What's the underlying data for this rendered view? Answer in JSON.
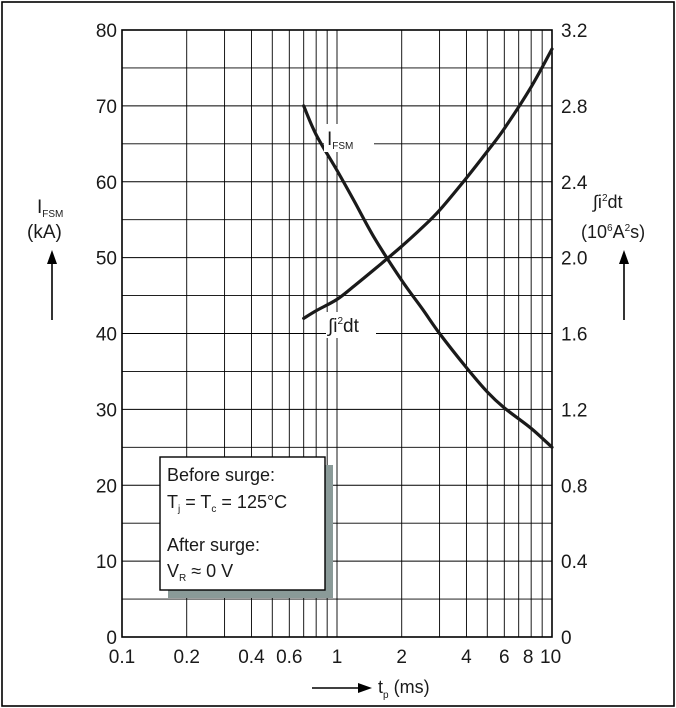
{
  "chart_data": {
    "type": "line",
    "x_scale": "log",
    "xlim": [
      0.1,
      10
    ],
    "ylim_left": [
      0,
      80
    ],
    "ylim_right": [
      0,
      3.2
    ],
    "grid": true,
    "x_major_ticks": [
      "0.1",
      "0.2",
      "0.4",
      "0.6",
      "1",
      "2",
      "4",
      "6",
      "8",
      "10"
    ],
    "x_major_values": [
      0.1,
      0.2,
      0.4,
      0.6,
      1,
      2,
      4,
      6,
      8,
      10
    ],
    "y_left_ticks": [
      "0",
      "10",
      "20",
      "30",
      "40",
      "50",
      "60",
      "70",
      "80"
    ],
    "y_left_values": [
      0,
      10,
      20,
      30,
      40,
      50,
      60,
      70,
      80
    ],
    "y_right_ticks": [
      "0",
      "0.4",
      "0.8",
      "1.2",
      "1.6",
      "2.0",
      "2.4",
      "2.8",
      "3.2"
    ],
    "y_right_values": [
      0,
      0.4,
      0.8,
      1.2,
      1.6,
      2.0,
      2.4,
      2.8,
      3.2
    ],
    "xlabel": {
      "main": "t",
      "sub": "p",
      "unit": " (ms)"
    },
    "ylabel_left": {
      "main": "I",
      "sub": "FSM",
      "unit": "(kA)"
    },
    "ylabel_right": {
      "integral": "∫i",
      "sup": "2",
      "suffix": "dt",
      "unit_a": "(10",
      "unit_sup1": "6",
      "unit_b": "A",
      "unit_sup2": "2",
      "unit_c": "s)"
    },
    "series": [
      {
        "name": "I_FSM",
        "label_main": "I",
        "label_sub": "FSM",
        "axis": "left",
        "x": [
          0.7,
          0.8,
          1.0,
          1.2,
          1.5,
          2.0,
          2.5,
          3.0,
          4.0,
          5.0,
          6.0,
          8.0,
          10.0
        ],
        "y": [
          70,
          66.2,
          61.5,
          57.5,
          52.5,
          47.0,
          43.2,
          40.0,
          35.5,
          32.3,
          30.2,
          27.5,
          25.0
        ]
      },
      {
        "name": "∫i²dt",
        "label_integral": "∫i",
        "label_sup": "2",
        "label_suffix": "dt",
        "axis": "right",
        "x": [
          0.7,
          0.8,
          1.0,
          1.2,
          1.5,
          2.0,
          2.5,
          3.0,
          4.0,
          5.0,
          6.0,
          8.0,
          10.0
        ],
        "y": [
          1.68,
          1.72,
          1.78,
          1.85,
          1.94,
          2.06,
          2.16,
          2.25,
          2.42,
          2.56,
          2.68,
          2.9,
          3.1
        ]
      }
    ],
    "annotation": {
      "line1": "Before surge:",
      "line2_a": "T",
      "line2_a_sub": "j",
      "line2_b": " = T",
      "line2_b_sub": "c",
      "line2_c": " = 125°C",
      "line3": "After surge:",
      "line4_a": "V",
      "line4_a_sub": "R",
      "line4_b": " ≈ 0 V"
    }
  }
}
